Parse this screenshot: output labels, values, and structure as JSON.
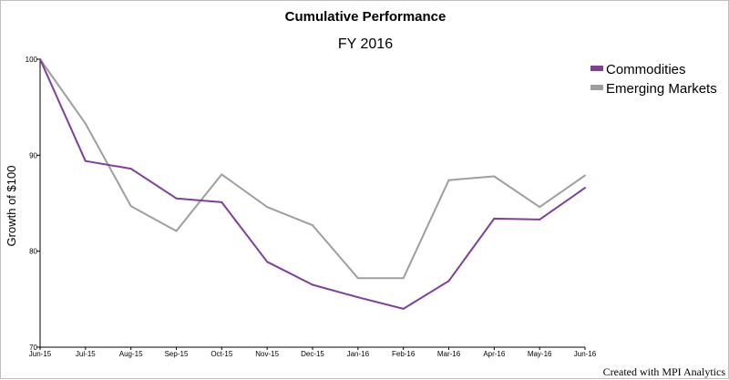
{
  "chart_data": {
    "type": "line",
    "title": "Cumulative Performance",
    "subtitle": "FY 2016",
    "xlabel": "",
    "ylabel": "Growth of $100",
    "x": [
      "Jun-15",
      "Jul-15",
      "Aug-15",
      "Sep-15",
      "Oct-15",
      "Nov-15",
      "Dec-15",
      "Jan-16",
      "Feb-16",
      "Mar-16",
      "Apr-16",
      "May-16",
      "Jun-16"
    ],
    "ylim": [
      70,
      100
    ],
    "yticks": [
      70,
      80,
      90,
      100
    ],
    "grid": false,
    "legend_position": "top-right",
    "series": [
      {
        "name": "Commodities",
        "color": "#7f3f98",
        "values": [
          100,
          89.4,
          88.6,
          85.5,
          85.1,
          78.9,
          76.5,
          75.2,
          74.0,
          76.9,
          83.4,
          83.3,
          86.6
        ]
      },
      {
        "name": "Emerging Markets",
        "color": "#9e9e9e",
        "values": [
          100,
          93.3,
          84.7,
          82.1,
          88.0,
          84.6,
          82.7,
          77.2,
          77.2,
          87.4,
          87.8,
          84.6,
          87.9
        ]
      }
    ]
  },
  "footer": {
    "credit": "Created with MPI Analytics"
  }
}
